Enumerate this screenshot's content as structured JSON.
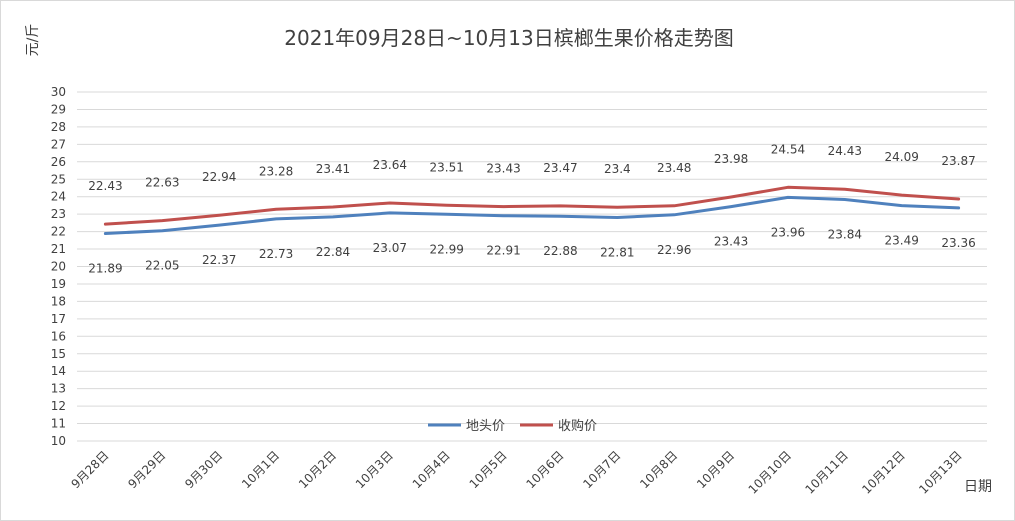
{
  "chart_data": {
    "type": "line",
    "title": "2021年09月28日~10月13日槟榔生果价格走势图",
    "ylabel": "元/斤",
    "xlabel": "日期",
    "ylim": [
      10,
      30
    ],
    "yticks": [
      10,
      11,
      12,
      13,
      14,
      15,
      16,
      17,
      18,
      19,
      20,
      21,
      22,
      23,
      24,
      25,
      26,
      27,
      28,
      29,
      30
    ],
    "grid": true,
    "legend_position": "bottom-center",
    "categories": [
      "9月28日",
      "9月29日",
      "9月30日",
      "10月1日",
      "10月2日",
      "10月3日",
      "10月4日",
      "10月5日",
      "10月6日",
      "10月7日",
      "10月8日",
      "10月9日",
      "10月10日",
      "10月11日",
      "10月12日",
      "10月13日"
    ],
    "series": [
      {
        "name": "地头价",
        "color": "#4f81bd",
        "values": [
          21.89,
          22.05,
          22.37,
          22.73,
          22.84,
          23.07,
          22.99,
          22.91,
          22.88,
          22.81,
          22.96,
          23.43,
          23.96,
          23.84,
          23.49,
          23.36
        ],
        "labels": [
          "21.89",
          "22.05",
          "22.37",
          "22.73",
          "22.84",
          "23.07",
          "22.99",
          "22.91",
          "22.88",
          "22.81",
          "22.96",
          "23.43",
          "23.96",
          "23.84",
          "23.49",
          "23.36"
        ]
      },
      {
        "name": "收购价",
        "color": "#c0504d",
        "values": [
          22.43,
          22.63,
          22.94,
          23.28,
          23.41,
          23.64,
          23.51,
          23.43,
          23.47,
          23.4,
          23.48,
          23.98,
          24.54,
          24.43,
          24.09,
          23.87
        ],
        "labels": [
          "22.43",
          "22.63",
          "22.94",
          "23.28",
          "23.41",
          "23.64",
          "23.51",
          "23.43",
          "23.47",
          "23.4",
          "23.48",
          "23.98",
          "24.54",
          "24.43",
          "24.09",
          "23.87"
        ]
      }
    ],
    "gridline_color": "#d9d9d9"
  }
}
